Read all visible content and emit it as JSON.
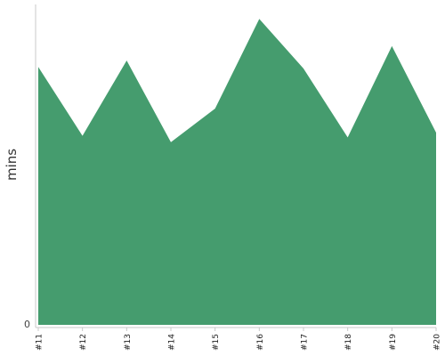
{
  "chart_data": {
    "type": "area",
    "title": "",
    "xlabel": "",
    "ylabel": "mins",
    "categories": [
      "#11",
      "#12",
      "#13",
      "#14",
      "#15",
      "#16",
      "#17",
      "#18",
      "#19",
      "#20"
    ],
    "series": [
      {
        "values": [
          80.5,
          59,
          82.5,
          57,
          67.5,
          95.5,
          80,
          58.5,
          87,
          60
        ]
      }
    ],
    "ylim": [
      0,
      100
    ],
    "y_ticks": [
      {
        "value": 0,
        "label": "0"
      }
    ],
    "grid": false,
    "legend": "none",
    "colors": {
      "area_fill": "#459c6e",
      "axis": "#c8c8c8"
    }
  }
}
